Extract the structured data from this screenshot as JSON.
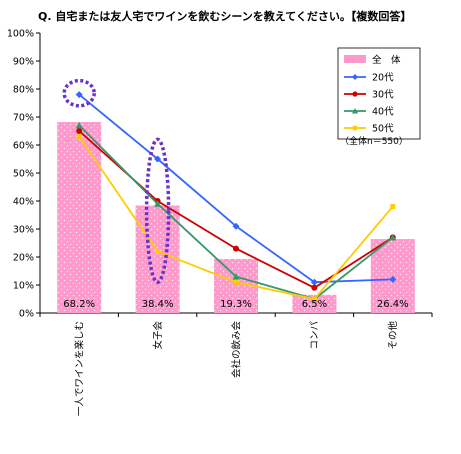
{
  "chart_data": {
    "type": "bar",
    "title": "Q. 自宅または友人宅でワインを飲むシーンを教えてください。【複数回答】",
    "categories": [
      "一人でワインを楽しむ",
      "女子会",
      "会社の飲み会",
      "コンパ",
      "その他"
    ],
    "y_ticks": [
      "0%",
      "10%",
      "20%",
      "30%",
      "40%",
      "50%",
      "60%",
      "70%",
      "80%",
      "90%",
      "100%"
    ],
    "ylim": [
      0,
      100
    ],
    "grid": false,
    "legend_position": "top-right",
    "note": "（全体n＝550）",
    "bar_series": {
      "name": "全　体",
      "color": "#ff99cc",
      "values": [
        68.2,
        38.4,
        19.3,
        6.5,
        26.4
      ],
      "value_labels": [
        "68.2%",
        "38.4%",
        "19.3%",
        "6.5%",
        "26.4%"
      ]
    },
    "series": [
      {
        "name": "20代",
        "color": "#3366ff",
        "marker": "diamond",
        "values": [
          78,
          55,
          31,
          11,
          12
        ]
      },
      {
        "name": "30代",
        "color": "#cc0000",
        "marker": "circle",
        "values": [
          65,
          40,
          23,
          9,
          27
        ]
      },
      {
        "name": "40代",
        "color": "#339966",
        "marker": "triangle",
        "values": [
          67,
          39,
          13,
          5,
          27
        ]
      },
      {
        "name": "50代",
        "color": "#ffcc00",
        "marker": "square",
        "values": [
          63,
          22,
          11,
          5,
          38
        ]
      }
    ],
    "highlights": [
      {
        "category_index": 0,
        "y_range": [
          74,
          83
        ]
      },
      {
        "category_index": 1,
        "y_range": [
          11,
          62
        ]
      }
    ],
    "highlight_color": "#6633cc"
  }
}
